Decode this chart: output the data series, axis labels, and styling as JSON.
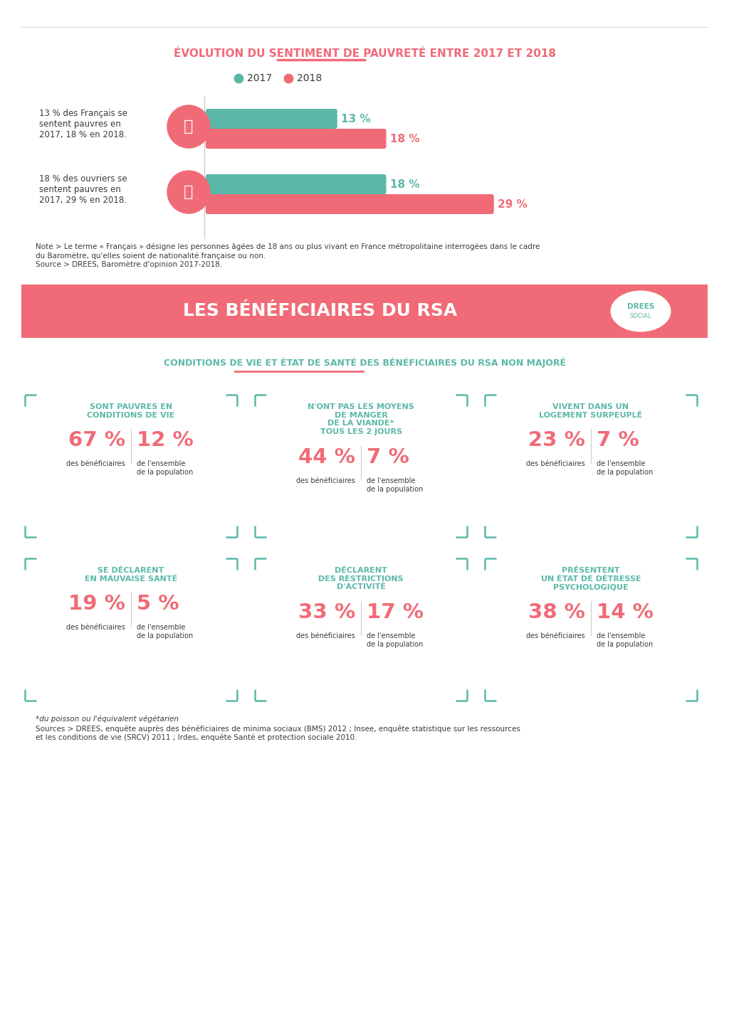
{
  "bg_color": "#ffffff",
  "white": "#ffffff",
  "teal": "#5bb8a8",
  "coral": "#f06b77",
  "dark_text": "#3a3a3a",
  "light_gray": "#cccccc",
  "top_title": "ÉVOLUTION DU SENTIMENT DE PAUVRETÉ ENTRE 2017 ET 2018",
  "bar_groups": [
    {
      "label": "13 % des Français se\nsentent pauvres en\n2017, 18 % en 2018.",
      "bar_2017": 13,
      "bar_2018": 18,
      "label_2017": "13 %",
      "label_2018": "18 %"
    },
    {
      "label": "18 % des ouvriers se\nsentent pauvres en\n2017, 29 % en 2018.",
      "bar_2017": 18,
      "bar_2018": 29,
      "label_2017": "18 %",
      "label_2018": "29 %"
    }
  ],
  "bar_max_val": 32,
  "bar_note": "Note > Le terme « Français » désigne les personnes âgées de 18 ans ou plus vivant en France métropolitaine interrogées dans le cadre\ndu Baromètre, qu'elles soient de nationalité française ou non.\nSource > DREES, Baromètre d'opinion 2017-2018.",
  "rsa_title": "LES BÉNÉFICIAIRES DU RSA",
  "rsa_subtitle": "CONDITIONS DE VIE ET ÉTAT DE SANTÉ DES BÉNÉFICIAIRES DU RSA NON MAJORÉ",
  "cards_row1": [
    {
      "header": "SONT PAUVRES EN\nCONDITIONS DE VIE",
      "val1": "67 %",
      "label1": "des bénéficiaires",
      "val2": "12 %",
      "label2": "de l'ensemble\nde la population"
    },
    {
      "header": "N'ONT PAS LES MOYENS\nDE MANGER\nDE LA VIANDE*\nTOUS LES 2 JOURS",
      "val1": "44 %",
      "label1": "des bénéficiaires",
      "val2": "7 %",
      "label2": "de l'ensemble\nde la population"
    },
    {
      "header": "VIVENT DANS UN\nLOGEMENT SURPEUPLÉ",
      "val1": "23 %",
      "label1": "des bénéficiaires",
      "val2": "7 %",
      "label2": "de l'ensemble\nde la population"
    }
  ],
  "cards_row2": [
    {
      "header": "SE DÉCLARENT\nEN MAUVAISE SANTÉ",
      "val1": "19 %",
      "label1": "des bénéficiaires",
      "val2": "5 %",
      "label2": "de l'ensemble\nde la population"
    },
    {
      "header": "DÉCLARENT\nDES RESTRICTIONS\nD'ACTIVITÉ",
      "val1": "33 %",
      "label1": "des bénéficiaires",
      "val2": "17 %",
      "label2": "de l'ensemble\nde la population"
    },
    {
      "header": "PRÉSENTENT\nUN ÉTAT DE DÉTRESSE\nPSYCHOLOGIQUE",
      "val1": "38 %",
      "label1": "des bénéficiaires",
      "val2": "14 %",
      "label2": "de l'ensemble\nde la population"
    }
  ],
  "footnote1": "*du poisson ou l'équivalent végétarien",
  "footnote2": "Sources > DREES, enquête auprès des bénéficiaires de minima sociaux (BMS) 2012 ; Insee, enquête statistique sur les ressources\net les conditions de vie (SRCV) 2011 ; Irdes, enquête Santé et protection sociale 2010."
}
